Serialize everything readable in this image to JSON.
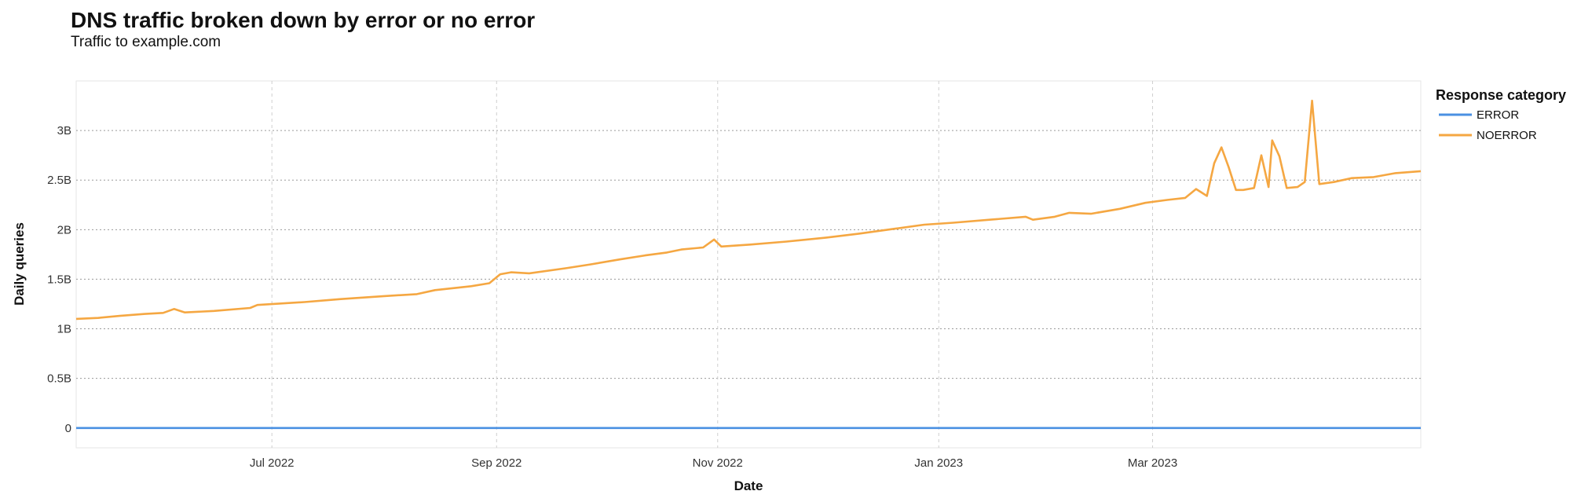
{
  "chart_data": {
    "type": "line",
    "title": "DNS traffic broken down by error or no error",
    "subtitle": "Traffic to example.com",
    "xlabel": "Date",
    "ylabel": "Daily queries",
    "x_ticks": [
      {
        "label": "Jul 2022",
        "date": "2022-07-01"
      },
      {
        "label": "Sep 2022",
        "date": "2022-09-01"
      },
      {
        "label": "Nov 2022",
        "date": "2022-11-01"
      },
      {
        "label": "Jan 2023",
        "date": "2023-01-01"
      },
      {
        "label": "Mar 2023",
        "date": "2023-03-01"
      }
    ],
    "y_ticks": [
      {
        "label": "0",
        "value": 0
      },
      {
        "label": "0.5B",
        "value": 500000000
      },
      {
        "label": "1B",
        "value": 1000000000
      },
      {
        "label": "1.5B",
        "value": 1500000000
      },
      {
        "label": "2B",
        "value": 2000000000
      },
      {
        "label": "2.5B",
        "value": 2500000000
      },
      {
        "label": "3B",
        "value": 3000000000
      }
    ],
    "xlim": [
      "2022-05-08",
      "2023-05-14"
    ],
    "ylim": [
      -200000000,
      3500000000
    ],
    "grid": true,
    "legend": {
      "title": "Response category",
      "position": "right"
    },
    "series": [
      {
        "name": "ERROR",
        "color": "#4a90e2",
        "points": [
          [
            "2022-05-08",
            0
          ],
          [
            "2023-05-14",
            0
          ]
        ]
      },
      {
        "name": "NOERROR",
        "color": "#f5a742",
        "points": [
          [
            "2022-05-08",
            1100000000
          ],
          [
            "2022-05-14",
            1110000000
          ],
          [
            "2022-05-20",
            1130000000
          ],
          [
            "2022-05-27",
            1150000000
          ],
          [
            "2022-06-01",
            1160000000
          ],
          [
            "2022-06-04",
            1200000000
          ],
          [
            "2022-06-07",
            1165000000
          ],
          [
            "2022-06-15",
            1180000000
          ],
          [
            "2022-06-25",
            1210000000
          ],
          [
            "2022-06-27",
            1240000000
          ],
          [
            "2022-07-10",
            1270000000
          ],
          [
            "2022-07-20",
            1300000000
          ],
          [
            "2022-08-01",
            1330000000
          ],
          [
            "2022-08-10",
            1350000000
          ],
          [
            "2022-08-15",
            1390000000
          ],
          [
            "2022-08-25",
            1430000000
          ],
          [
            "2022-08-30",
            1460000000
          ],
          [
            "2022-09-02",
            1550000000
          ],
          [
            "2022-09-05",
            1570000000
          ],
          [
            "2022-09-10",
            1560000000
          ],
          [
            "2022-09-20",
            1610000000
          ],
          [
            "2022-09-27",
            1650000000
          ],
          [
            "2022-10-05",
            1700000000
          ],
          [
            "2022-10-12",
            1740000000
          ],
          [
            "2022-10-18",
            1770000000
          ],
          [
            "2022-10-22",
            1800000000
          ],
          [
            "2022-10-28",
            1820000000
          ],
          [
            "2022-10-31",
            1900000000
          ],
          [
            "2022-11-02",
            1830000000
          ],
          [
            "2022-11-10",
            1850000000
          ],
          [
            "2022-11-20",
            1880000000
          ],
          [
            "2022-12-01",
            1920000000
          ],
          [
            "2022-12-10",
            1960000000
          ],
          [
            "2022-12-20",
            2010000000
          ],
          [
            "2022-12-28",
            2050000000
          ],
          [
            "2023-01-05",
            2070000000
          ],
          [
            "2023-01-15",
            2100000000
          ],
          [
            "2023-01-25",
            2130000000
          ],
          [
            "2023-01-27",
            2100000000
          ],
          [
            "2023-02-02",
            2130000000
          ],
          [
            "2023-02-06",
            2170000000
          ],
          [
            "2023-02-12",
            2160000000
          ],
          [
            "2023-02-20",
            2210000000
          ],
          [
            "2023-02-27",
            2270000000
          ],
          [
            "2023-03-05",
            2300000000
          ],
          [
            "2023-03-10",
            2320000000
          ],
          [
            "2023-03-13",
            2410000000
          ],
          [
            "2023-03-16",
            2340000000
          ],
          [
            "2023-03-18",
            2670000000
          ],
          [
            "2023-03-20",
            2830000000
          ],
          [
            "2023-03-22",
            2630000000
          ],
          [
            "2023-03-24",
            2400000000
          ],
          [
            "2023-03-26",
            2400000000
          ],
          [
            "2023-03-29",
            2420000000
          ],
          [
            "2023-03-31",
            2750000000
          ],
          [
            "2023-04-02",
            2430000000
          ],
          [
            "2023-04-03",
            2900000000
          ],
          [
            "2023-04-05",
            2740000000
          ],
          [
            "2023-04-07",
            2420000000
          ],
          [
            "2023-04-10",
            2430000000
          ],
          [
            "2023-04-12",
            2480000000
          ],
          [
            "2023-04-14",
            3300000000
          ],
          [
            "2023-04-16",
            2460000000
          ],
          [
            "2023-04-20",
            2480000000
          ],
          [
            "2023-04-25",
            2520000000
          ],
          [
            "2023-05-01",
            2530000000
          ],
          [
            "2023-05-07",
            2570000000
          ],
          [
            "2023-05-14",
            2590000000
          ]
        ]
      }
    ]
  }
}
